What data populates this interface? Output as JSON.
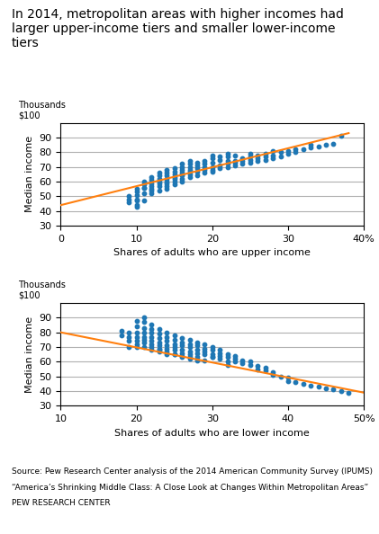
{
  "chart_data": [
    {
      "type": "scatter",
      "title": "In 2014, metropolitan areas with higher incomes had\nlarger upper-income tiers and smaller lower-income\ntiers",
      "xlabel": "Shares of adults who are upper income",
      "ylabel": "Median income",
      "annotations": [
        "Thousands\n$100"
      ],
      "xlim": [
        0,
        40
      ],
      "ylim": [
        30,
        100
      ],
      "xticks": [
        0,
        10,
        20,
        30,
        {
          "value": 40,
          "label": "40%"
        }
      ],
      "yticks": [
        30,
        40,
        50,
        60,
        70,
        80,
        90
      ],
      "grid": "y",
      "series": [
        {
          "type": "scatter",
          "x": [
            9,
            9,
            9,
            10,
            10,
            10,
            10,
            10,
            10,
            10,
            11,
            11,
            11,
            11,
            11,
            11,
            12,
            12,
            12,
            12,
            12,
            12,
            12,
            13,
            13,
            13,
            13,
            13,
            13,
            13,
            14,
            14,
            14,
            14,
            14,
            14,
            14,
            14,
            15,
            15,
            15,
            15,
            15,
            15,
            15,
            16,
            16,
            16,
            16,
            16,
            16,
            16,
            16,
            17,
            17,
            17,
            17,
            17,
            17,
            17,
            18,
            18,
            18,
            18,
            18,
            19,
            19,
            19,
            19,
            19,
            20,
            20,
            20,
            20,
            20,
            20,
            21,
            21,
            21,
            21,
            22,
            22,
            22,
            22,
            22,
            23,
            23,
            23,
            23,
            24,
            24,
            24,
            25,
            25,
            25,
            25,
            26,
            26,
            26,
            27,
            27,
            27,
            28,
            28,
            28,
            29,
            29,
            30,
            30,
            31,
            31,
            32,
            33,
            33,
            34,
            35,
            36,
            37
          ],
          "values": [
            46,
            48,
            50,
            43,
            44,
            47,
            48,
            51,
            53,
            55,
            47,
            52,
            56,
            56,
            60,
            58,
            52,
            54,
            55,
            57,
            59,
            61,
            63,
            54,
            57,
            59,
            60,
            62,
            66,
            64,
            55,
            57,
            59,
            60,
            62,
            64,
            68,
            66,
            58,
            60,
            62,
            63,
            65,
            67,
            69,
            60,
            62,
            64,
            65,
            66,
            68,
            70,
            72,
            63,
            65,
            67,
            68,
            70,
            72,
            74,
            64,
            67,
            69,
            71,
            73,
            66,
            68,
            70,
            72,
            74,
            67,
            68,
            70,
            73,
            76,
            78,
            69,
            71,
            75,
            77,
            70,
            72,
            74,
            77,
            79,
            71,
            73,
            74,
            78,
            72,
            74,
            76,
            73,
            75,
            77,
            79,
            74,
            76,
            78,
            75,
            77,
            79,
            76,
            78,
            81,
            77,
            80,
            79,
            81,
            80,
            82,
            82,
            83,
            85,
            84,
            85,
            86,
            91
          ]
        },
        {
          "type": "line",
          "x": [
            0,
            38
          ],
          "values": [
            44,
            93
          ]
        }
      ]
    },
    {
      "type": "scatter",
      "xlabel": "Shares of adults who are lower income",
      "ylabel": "Median income",
      "annotations": [
        "Thousands\n$100"
      ],
      "footer": [
        "Source: Pew Research Center analysis of the 2014 American Community Survey (IPUMS)",
        "“America’s Shrinking Middle Class: A Close Look at Changes Within Metropolitan Areas”",
        "PEW RESEARCH CENTER"
      ],
      "xlim": [
        10,
        50
      ],
      "ylim": [
        30,
        100
      ],
      "xticks": [
        10,
        20,
        30,
        40,
        {
          "value": 50,
          "label": "50%"
        }
      ],
      "yticks": [
        30,
        40,
        50,
        60,
        70,
        80,
        90
      ],
      "grid": "y",
      "series": [
        {
          "type": "scatter",
          "x": [
            18,
            18,
            19,
            19,
            19,
            19,
            20,
            20,
            20,
            20,
            20,
            20,
            20,
            21,
            21,
            21,
            21,
            21,
            21,
            21,
            21,
            22,
            22,
            22,
            22,
            22,
            22,
            22,
            22,
            23,
            23,
            23,
            23,
            23,
            23,
            23,
            23,
            24,
            24,
            24,
            24,
            24,
            24,
            24,
            25,
            25,
            25,
            25,
            25,
            25,
            25,
            26,
            26,
            26,
            26,
            26,
            26,
            26,
            27,
            27,
            27,
            27,
            27,
            27,
            27,
            28,
            28,
            28,
            28,
            28,
            28,
            29,
            29,
            29,
            29,
            29,
            30,
            30,
            30,
            30,
            30,
            31,
            31,
            31,
            31,
            32,
            32,
            32,
            32,
            33,
            33,
            33,
            34,
            34,
            35,
            35,
            36,
            36,
            37,
            37,
            38,
            38,
            39,
            40,
            40,
            41,
            42,
            43,
            44,
            45,
            46,
            47,
            48
          ],
          "values": [
            81,
            78,
            80,
            77,
            74,
            70,
            88,
            84,
            80,
            77,
            74,
            72,
            70,
            90,
            87,
            83,
            80,
            77,
            75,
            73,
            70,
            68,
            85,
            82,
            80,
            77,
            74,
            72,
            70,
            68,
            82,
            79,
            76,
            73,
            71,
            69,
            67,
            65,
            80,
            77,
            74,
            71,
            69,
            67,
            65,
            78,
            75,
            72,
            70,
            68,
            65,
            63,
            76,
            73,
            71,
            68,
            66,
            64,
            62,
            75,
            72,
            70,
            67,
            65,
            63,
            61,
            73,
            71,
            68,
            66,
            63,
            61,
            72,
            69,
            67,
            65,
            63,
            70,
            68,
            65,
            63,
            68,
            66,
            64,
            62,
            65,
            63,
            60,
            58,
            64,
            62,
            60,
            61,
            59,
            60,
            58,
            57,
            55,
            56,
            54,
            53,
            51,
            50,
            49,
            47,
            46,
            45,
            44,
            43,
            42,
            41,
            40,
            39
          ]
        },
        {
          "type": "line",
          "x": [
            10,
            50
          ],
          "values": [
            80,
            39
          ]
        }
      ]
    }
  ]
}
